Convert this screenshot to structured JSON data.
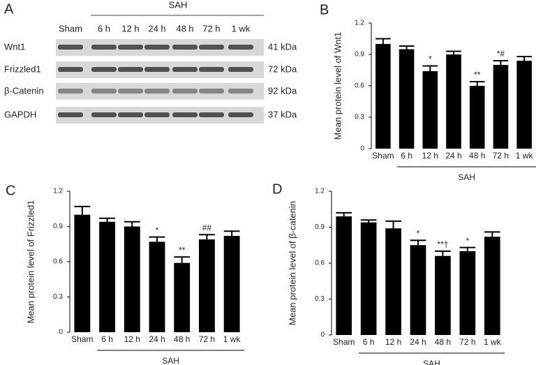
{
  "blot": {
    "letter": "A",
    "group": "SAH",
    "lanes": [
      "Sham",
      "6 h",
      "12 h",
      "24 h",
      "48 h",
      "72 h",
      "1 wk"
    ],
    "rows": [
      {
        "name": "Wnt1",
        "size": "41 kDa"
      },
      {
        "name": "Frizzled1",
        "size": "72 kDa"
      },
      {
        "name": "β-Catenin",
        "size": "92 kDa"
      },
      {
        "name": "GAPDH",
        "size": "37 kDa"
      }
    ]
  },
  "chart_data": [
    {
      "type": "bar",
      "letter": "B",
      "ylabel": "Mean protein level of Wnt1",
      "xlabel": "SAH",
      "categories": [
        "Sham",
        "6 h",
        "12 h",
        "24 h",
        "48 h",
        "72 h",
        "1 wk"
      ],
      "values": [
        1.0,
        0.95,
        0.74,
        0.9,
        0.6,
        0.8,
        0.84
      ],
      "errors": [
        0.05,
        0.03,
        0.05,
        0.03,
        0.04,
        0.04,
        0.04
      ],
      "annotations": [
        null,
        null,
        "*",
        null,
        "**",
        "*#",
        null
      ],
      "color": "#000000",
      "ylim": [
        0,
        1.2
      ],
      "yticks": [
        0,
        0.3,
        0.6,
        0.9,
        1.2
      ]
    },
    {
      "type": "bar",
      "letter": "C",
      "ylabel": "Mean protein level of Frizzled1",
      "xlabel": "SAH",
      "categories": [
        "Sham",
        "6 h",
        "12 h",
        "24 h",
        "48 h",
        "72 h",
        "1 wk"
      ],
      "values": [
        1.0,
        0.94,
        0.9,
        0.77,
        0.59,
        0.79,
        0.82
      ],
      "errors": [
        0.07,
        0.03,
        0.04,
        0.04,
        0.05,
        0.04,
        0.04
      ],
      "annotations": [
        null,
        null,
        null,
        "*",
        "**",
        "##",
        null
      ],
      "color": "#000000",
      "ylim": [
        0,
        1.2
      ],
      "yticks": [
        0,
        0.3,
        0.6,
        0.9,
        1.2
      ]
    },
    {
      "type": "bar",
      "letter": "D",
      "ylabel": "Mean protein level of β-catenin",
      "xlabel": "SAH",
      "categories": [
        "Sham",
        "6 h",
        "12 h",
        "24 h",
        "48 h",
        "72 h",
        "1 wk"
      ],
      "values": [
        0.99,
        0.94,
        0.89,
        0.75,
        0.66,
        0.7,
        0.82
      ],
      "errors": [
        0.03,
        0.02,
        0.06,
        0.04,
        0.04,
        0.03,
        0.04
      ],
      "annotations": [
        null,
        null,
        null,
        "*",
        "**†",
        "*",
        null
      ],
      "color": "#000000",
      "ylim": [
        0,
        1.2
      ],
      "yticks": [
        0,
        0.3,
        0.6,
        0.9,
        1.2
      ]
    }
  ]
}
